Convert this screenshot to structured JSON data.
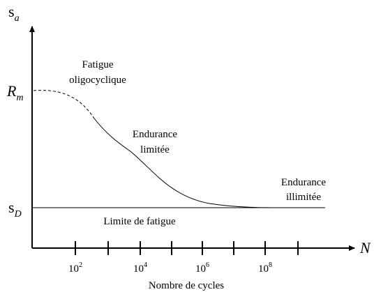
{
  "y_axis": {
    "symbol": "s",
    "subscript": "a"
  },
  "rm_label": {
    "symbol": "R",
    "subscript": "m"
  },
  "sd_label": {
    "symbol": "s",
    "subscript": "D"
  },
  "x_axis": {
    "symbol": "N",
    "title": "Nombre de cycles",
    "ticks": [
      {
        "base": "10",
        "exp": "2"
      },
      {
        "base": "10",
        "exp": "4"
      },
      {
        "base": "10",
        "exp": "6"
      },
      {
        "base": "10",
        "exp": "8"
      }
    ]
  },
  "regions": {
    "low_cycle": [
      "Fatigue",
      "oligocyclique"
    ],
    "limited": [
      "Endurance",
      "limitée"
    ],
    "unlimited": [
      "Endurance",
      "illimitée"
    ],
    "limit": "Limite de fatigue"
  }
}
